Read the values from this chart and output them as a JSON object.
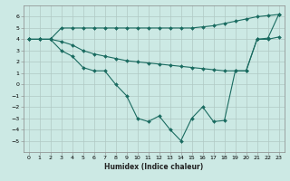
{
  "xlabel": "Humidex (Indice chaleur)",
  "background_color": "#cce9e4",
  "grid_color": "#b0c8c4",
  "line_color": "#1a6b60",
  "xlim": [
    -0.5,
    23.5
  ],
  "ylim": [
    -6,
    7
  ],
  "xticks": [
    0,
    1,
    2,
    3,
    4,
    5,
    6,
    7,
    8,
    9,
    10,
    11,
    12,
    13,
    14,
    15,
    16,
    17,
    18,
    19,
    20,
    21,
    22,
    23
  ],
  "yticks": [
    -5,
    -4,
    -3,
    -2,
    -1,
    0,
    1,
    2,
    3,
    4,
    5,
    6
  ],
  "line1_x": [
    0,
    1,
    2,
    3,
    4,
    5,
    6,
    7,
    8,
    9,
    10,
    11,
    12,
    13,
    14,
    15,
    16,
    17,
    18,
    19,
    20,
    21,
    22,
    23
  ],
  "line1_y": [
    4.0,
    4.0,
    4.0,
    5.0,
    5.0,
    5.0,
    5.0,
    5.0,
    5.0,
    5.0,
    5.0,
    5.0,
    5.0,
    5.0,
    5.0,
    5.0,
    5.1,
    5.2,
    5.4,
    5.6,
    5.8,
    6.0,
    6.1,
    6.2
  ],
  "line2_x": [
    0,
    1,
    2,
    3,
    4,
    5,
    6,
    7,
    8,
    9,
    10,
    11,
    12,
    13,
    14,
    15,
    16,
    17,
    18,
    19,
    20,
    21,
    22,
    23
  ],
  "line2_y": [
    4.0,
    4.0,
    4.0,
    3.8,
    3.5,
    3.0,
    2.7,
    2.5,
    2.3,
    2.1,
    2.0,
    1.9,
    1.8,
    1.7,
    1.6,
    1.5,
    1.4,
    1.3,
    1.2,
    1.2,
    1.2,
    4.0,
    4.0,
    4.2
  ],
  "line3_x": [
    0,
    1,
    2,
    3,
    4,
    5,
    6,
    7,
    8,
    9,
    10,
    11,
    12,
    13,
    14,
    15,
    16,
    17,
    18,
    19,
    20,
    21,
    22,
    23
  ],
  "line3_y": [
    4.0,
    4.0,
    4.0,
    3.0,
    2.5,
    1.5,
    1.2,
    1.2,
    0.0,
    -1.0,
    -3.0,
    -3.3,
    -2.8,
    -4.0,
    -5.0,
    -3.0,
    -2.0,
    -3.3,
    -3.2,
    1.2,
    1.2,
    4.0,
    4.1,
    6.2
  ]
}
